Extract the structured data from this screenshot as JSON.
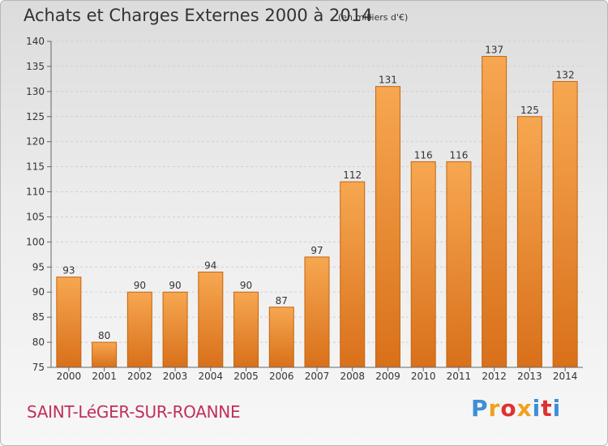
{
  "header": {
    "title": "Achats et Charges Externes 2000 à 2014",
    "unit": "(en milliers d'€)"
  },
  "footer": {
    "commune": "SAINT-LéGER-SUR-ROANNE",
    "logo": {
      "letters": [
        "P",
        "r",
        "o",
        "x",
        "i",
        "t",
        "i"
      ],
      "colors": [
        "#3d8fd6",
        "#f0a020",
        "#e03030",
        "#f0a020",
        "#3d8fd6",
        "#e03030",
        "#3d8fd6"
      ]
    }
  },
  "colors": {
    "bar_top": "#f7a751",
    "bar_bottom": "#d9701a",
    "bar_stroke": "#c4650f",
    "commune_text": "#c0305a",
    "text": "#333333"
  },
  "chart_data": {
    "type": "bar",
    "categories": [
      "2000",
      "2001",
      "2002",
      "2003",
      "2004",
      "2005",
      "2006",
      "2007",
      "2008",
      "2009",
      "2010",
      "2011",
      "2012",
      "2013",
      "2014"
    ],
    "values": [
      93,
      80,
      90,
      90,
      94,
      90,
      87,
      97,
      112,
      131,
      116,
      116,
      137,
      125,
      132
    ],
    "title": "Achats et Charges Externes 2000 à 2014",
    "ylim": [
      75,
      140
    ],
    "yticks": [
      75,
      80,
      85,
      90,
      95,
      100,
      105,
      110,
      115,
      120,
      125,
      130,
      135,
      140
    ],
    "grid": true,
    "legend": "none"
  }
}
